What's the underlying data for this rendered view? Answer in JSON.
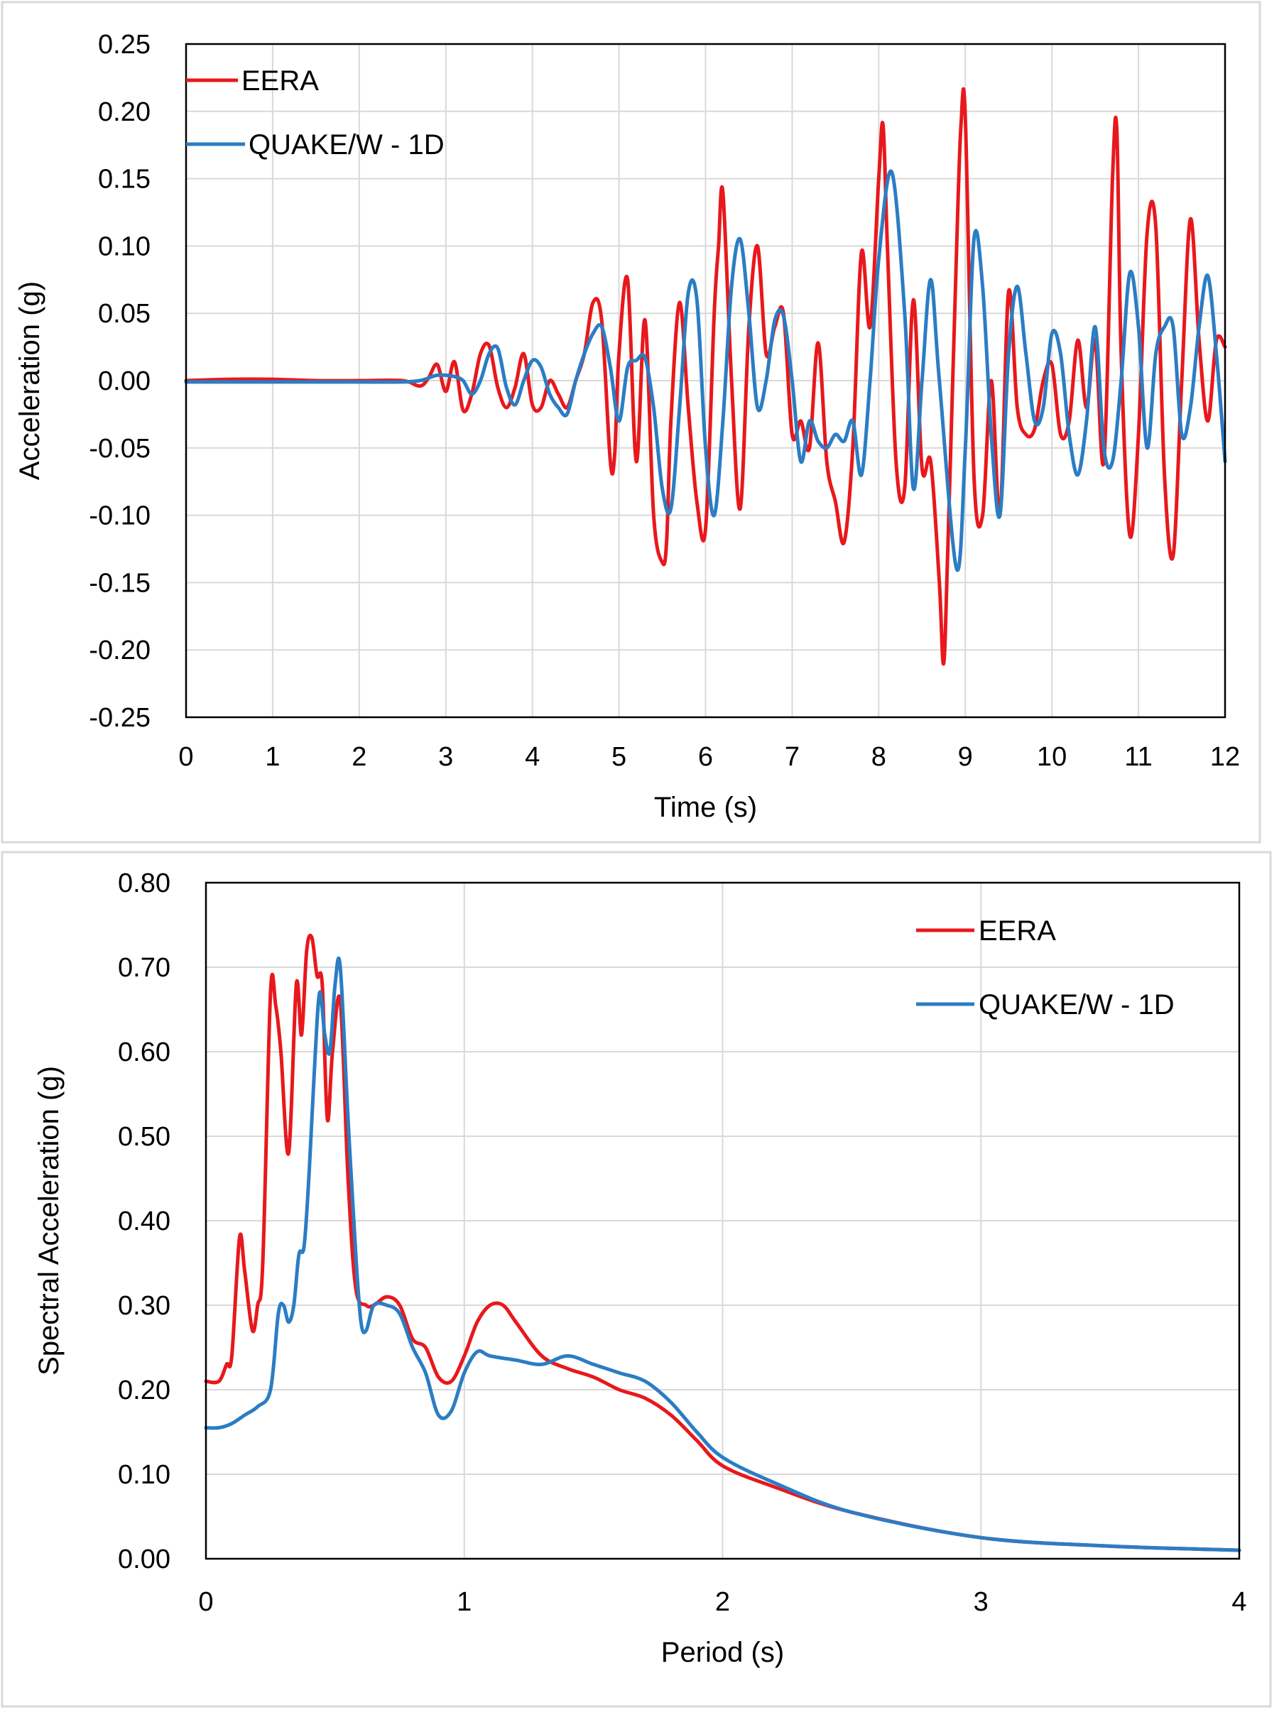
{
  "chart_data": [
    {
      "type": "line",
      "xlabel": "Time (s)",
      "ylabel": "Acceleration (g)",
      "xlim": [
        0,
        12
      ],
      "ylim": [
        -0.25,
        0.25
      ],
      "xticks": [
        "0",
        "1",
        "2",
        "3",
        "4",
        "5",
        "6",
        "7",
        "8",
        "9",
        "10",
        "11",
        "12"
      ],
      "yticks": [
        "0.25",
        "0.20",
        "0.15",
        "0.10",
        "0.05",
        "0.00",
        "-0.05",
        "-0.10",
        "-0.15",
        "-0.20",
        "-0.25"
      ],
      "grid": true,
      "legend_position": "top-left",
      "series": [
        {
          "name": "EERA",
          "color": "#e8181c",
          "x": [
            0,
            0.5,
            1,
            1.5,
            2,
            2.5,
            2.7,
            2.8,
            2.9,
            3.0,
            3.1,
            3.2,
            3.3,
            3.4,
            3.5,
            3.6,
            3.7,
            3.8,
            3.9,
            4.0,
            4.1,
            4.2,
            4.3,
            4.4,
            4.5,
            4.6,
            4.7,
            4.8,
            4.9,
            4.95,
            5.0,
            5.1,
            5.2,
            5.3,
            5.4,
            5.5,
            5.55,
            5.6,
            5.7,
            5.8,
            5.9,
            6.0,
            6.1,
            6.15,
            6.2,
            6.3,
            6.4,
            6.5,
            6.6,
            6.7,
            6.8,
            6.9,
            7.0,
            7.1,
            7.2,
            7.3,
            7.4,
            7.5,
            7.6,
            7.7,
            7.8,
            7.9,
            8.0,
            8.05,
            8.1,
            8.2,
            8.3,
            8.4,
            8.5,
            8.6,
            8.7,
            8.75,
            8.8,
            8.9,
            8.95,
            9.0,
            9.1,
            9.2,
            9.3,
            9.4,
            9.5,
            9.6,
            9.7,
            9.8,
            9.9,
            10.0,
            10.1,
            10.2,
            10.3,
            10.4,
            10.5,
            10.6,
            10.7,
            10.75,
            10.8,
            10.9,
            11.0,
            11.1,
            11.2,
            11.3,
            11.4,
            11.5,
            11.6,
            11.7,
            11.8,
            11.9,
            12.0
          ],
          "y": [
            0,
            0.001,
            0.001,
            0,
            0,
            0,
            -0.004,
            0.002,
            0.012,
            -0.008,
            0.014,
            -0.022,
            -0.01,
            0.02,
            0.026,
            -0.005,
            -0.02,
            -0.005,
            0.02,
            -0.018,
            -0.02,
            0,
            -0.01,
            -0.02,
            0,
            0.02,
            0.058,
            0.045,
            -0.06,
            -0.055,
            0.02,
            0.075,
            -0.06,
            0.045,
            -0.1,
            -0.135,
            -0.12,
            -0.03,
            0.058,
            -0.02,
            -0.09,
            -0.11,
            0.05,
            0.1,
            0.14,
            0.0,
            -0.095,
            0.04,
            0.1,
            0.02,
            0.04,
            0.05,
            -0.04,
            -0.03,
            -0.05,
            0.028,
            -0.06,
            -0.09,
            -0.12,
            -0.05,
            0.095,
            0.04,
            0.15,
            0.19,
            0.1,
            -0.06,
            -0.08,
            0.06,
            -0.065,
            -0.06,
            -0.15,
            -0.21,
            -0.12,
            0.1,
            0.19,
            0.195,
            -0.07,
            -0.1,
            0.0,
            -0.1,
            0.066,
            -0.02,
            -0.04,
            -0.036,
            0.0,
            0.012,
            -0.04,
            -0.03,
            0.03,
            -0.02,
            0.03,
            -0.06,
            0.15,
            0.186,
            0.02,
            -0.115,
            -0.04,
            0.11,
            0.114,
            -0.07,
            -0.13,
            0.0,
            0.12,
            0.03,
            -0.03,
            0.03,
            0.025
          ]
        },
        {
          "name": "QUAKE/W - 1D",
          "color": "#2b7dc4",
          "x": [
            0,
            0.5,
            1,
            1.5,
            2,
            2.5,
            2.7,
            2.8,
            2.9,
            3.0,
            3.1,
            3.2,
            3.3,
            3.4,
            3.5,
            3.6,
            3.7,
            3.8,
            3.9,
            4.0,
            4.1,
            4.2,
            4.3,
            4.4,
            4.5,
            4.6,
            4.7,
            4.8,
            4.9,
            5.0,
            5.1,
            5.2,
            5.3,
            5.4,
            5.5,
            5.6,
            5.7,
            5.8,
            5.9,
            6.0,
            6.1,
            6.2,
            6.3,
            6.4,
            6.5,
            6.6,
            6.7,
            6.8,
            6.9,
            7.0,
            7.1,
            7.2,
            7.3,
            7.4,
            7.5,
            7.6,
            7.7,
            7.8,
            7.9,
            8.0,
            8.15,
            8.3,
            8.4,
            8.5,
            8.6,
            8.7,
            8.9,
            9.0,
            9.1,
            9.2,
            9.3,
            9.4,
            9.5,
            9.6,
            9.7,
            9.8,
            9.9,
            10.0,
            10.1,
            10.2,
            10.3,
            10.4,
            10.5,
            10.6,
            10.7,
            10.8,
            10.9,
            11.0,
            11.1,
            11.2,
            11.3,
            11.4,
            11.5,
            11.6,
            11.7,
            11.8,
            11.9,
            12.0
          ],
          "y": [
            -0.001,
            -0.001,
            -0.001,
            -0.001,
            -0.001,
            -0.001,
            0.0,
            0.002,
            0.004,
            0.004,
            0.003,
            0.0,
            -0.01,
            0.0,
            0.02,
            0.024,
            -0.005,
            -0.018,
            0.0,
            0.015,
            0.01,
            -0.01,
            -0.02,
            -0.025,
            0.0,
            0.02,
            0.035,
            0.04,
            0.01,
            -0.03,
            0.01,
            0.015,
            0.017,
            -0.02,
            -0.08,
            -0.095,
            -0.02,
            0.065,
            0.06,
            -0.05,
            -0.1,
            -0.03,
            0.07,
            0.105,
            0.05,
            -0.02,
            0.0,
            0.045,
            0.048,
            0.0,
            -0.06,
            -0.03,
            -0.045,
            -0.05,
            -0.04,
            -0.045,
            -0.03,
            -0.07,
            0.0,
            0.09,
            0.155,
            0.05,
            -0.08,
            0.0,
            0.075,
            0.0,
            -0.14,
            -0.05,
            0.105,
            0.07,
            -0.04,
            -0.1,
            0.02,
            0.07,
            0.02,
            -0.03,
            -0.02,
            0.035,
            0.02,
            -0.04,
            -0.07,
            -0.03,
            0.04,
            -0.05,
            -0.06,
            0.0,
            0.08,
            0.04,
            -0.05,
            0.02,
            0.04,
            0.04,
            -0.04,
            -0.02,
            0.04,
            0.078,
            0.02,
            -0.06
          ]
        }
      ]
    },
    {
      "type": "line",
      "xlabel": "Period (s)",
      "ylabel": "Spectral Acceleration (g)",
      "xlim": [
        0,
        4
      ],
      "ylim": [
        0,
        0.8
      ],
      "xticks": [
        "0",
        "1",
        "2",
        "3",
        "4"
      ],
      "yticks": [
        "0.80",
        "0.70",
        "0.60",
        "0.50",
        "0.40",
        "0.30",
        "0.20",
        "0.10",
        "0.00"
      ],
      "grid": true,
      "legend_position": "top-right",
      "series": [
        {
          "name": "EERA",
          "color": "#e8181c",
          "x": [
            0,
            0.05,
            0.08,
            0.1,
            0.13,
            0.15,
            0.18,
            0.2,
            0.22,
            0.25,
            0.27,
            0.29,
            0.32,
            0.35,
            0.37,
            0.39,
            0.41,
            0.43,
            0.45,
            0.47,
            0.49,
            0.52,
            0.55,
            0.58,
            0.62,
            0.65,
            0.7,
            0.75,
            0.8,
            0.85,
            0.9,
            0.95,
            1.0,
            1.05,
            1.1,
            1.15,
            1.2,
            1.3,
            1.4,
            1.5,
            1.6,
            1.7,
            1.8,
            1.9,
            2.0,
            2.2,
            2.5,
            3.0,
            3.5,
            4.0
          ],
          "y": [
            0.21,
            0.21,
            0.23,
            0.24,
            0.38,
            0.34,
            0.27,
            0.3,
            0.35,
            0.67,
            0.655,
            0.6,
            0.48,
            0.68,
            0.62,
            0.72,
            0.735,
            0.69,
            0.68,
            0.52,
            0.6,
            0.66,
            0.45,
            0.32,
            0.3,
            0.3,
            0.31,
            0.3,
            0.26,
            0.25,
            0.215,
            0.21,
            0.24,
            0.28,
            0.3,
            0.3,
            0.28,
            0.24,
            0.225,
            0.215,
            0.2,
            0.19,
            0.17,
            0.14,
            0.11,
            0.085,
            0.055,
            0.025,
            0.015,
            0.01
          ]
        },
        {
          "name": "QUAKE/W - 1D",
          "color": "#2b7dc4",
          "x": [
            0,
            0.05,
            0.1,
            0.15,
            0.2,
            0.25,
            0.28,
            0.3,
            0.32,
            0.34,
            0.36,
            0.38,
            0.4,
            0.42,
            0.44,
            0.46,
            0.48,
            0.5,
            0.52,
            0.55,
            0.58,
            0.6,
            0.62,
            0.65,
            0.7,
            0.75,
            0.8,
            0.85,
            0.9,
            0.95,
            1.0,
            1.05,
            1.1,
            1.2,
            1.3,
            1.4,
            1.5,
            1.6,
            1.7,
            1.8,
            1.9,
            2.0,
            2.2,
            2.5,
            3.0,
            3.5,
            4.0
          ],
          "y": [
            0.155,
            0.155,
            0.16,
            0.17,
            0.18,
            0.2,
            0.29,
            0.3,
            0.28,
            0.3,
            0.36,
            0.37,
            0.46,
            0.58,
            0.67,
            0.62,
            0.6,
            0.68,
            0.7,
            0.52,
            0.36,
            0.28,
            0.27,
            0.3,
            0.3,
            0.29,
            0.25,
            0.22,
            0.17,
            0.175,
            0.22,
            0.245,
            0.24,
            0.235,
            0.23,
            0.24,
            0.23,
            0.22,
            0.21,
            0.185,
            0.15,
            0.12,
            0.09,
            0.055,
            0.025,
            0.015,
            0.01
          ]
        }
      ]
    }
  ]
}
